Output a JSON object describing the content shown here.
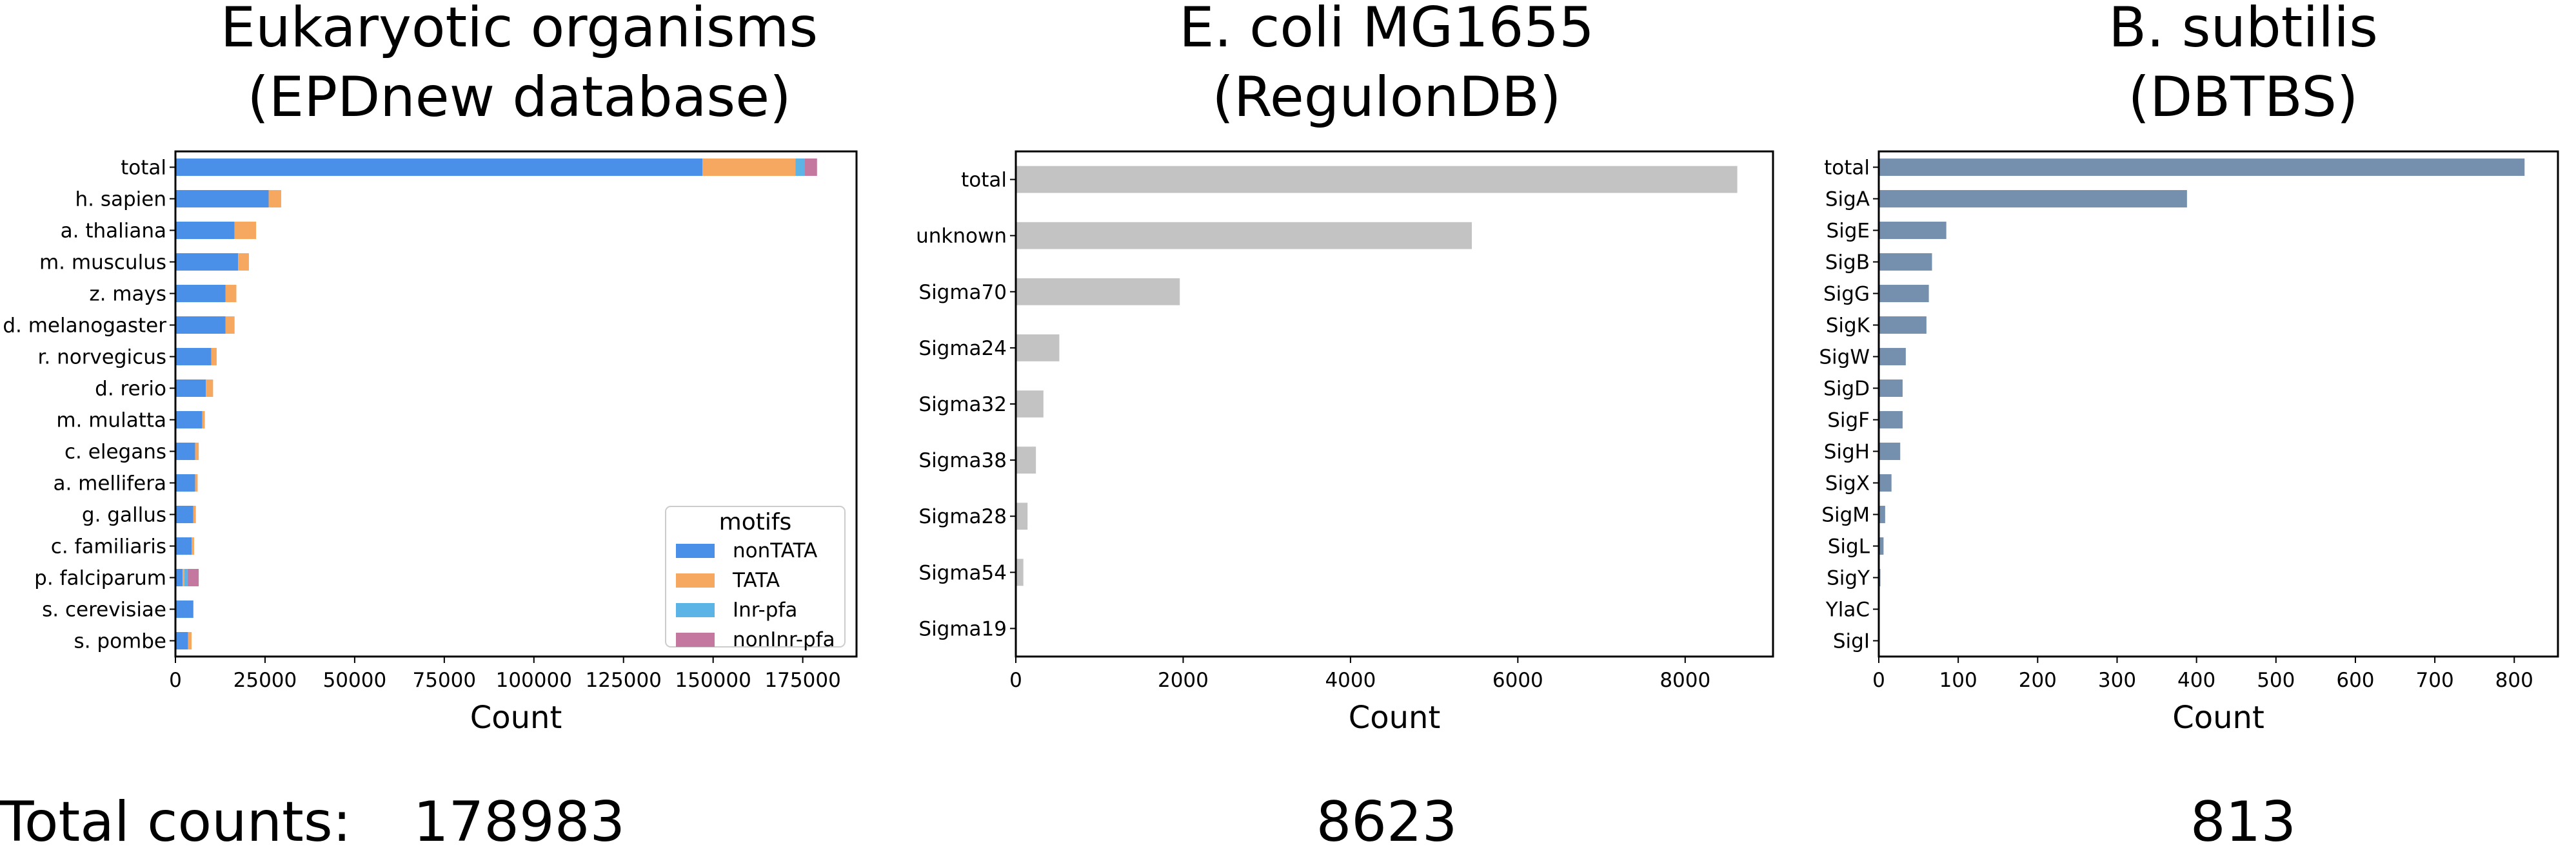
{
  "summary": {
    "label": "Total counts:",
    "totals": [
      "178983",
      "8623",
      "813"
    ]
  },
  "chart_data": [
    {
      "type": "bar",
      "orientation": "horizontal",
      "stacked": true,
      "title": [
        "Eukaryotic organisms",
        "(EPDnew database)"
      ],
      "xlabel": "Count",
      "ylabel": "",
      "xlim": [
        0,
        190000
      ],
      "xticks": [
        "0",
        "25000",
        "50000",
        "75000",
        "100000",
        "125000",
        "150000",
        "175000"
      ],
      "categories": [
        "total",
        "h. sapien",
        "a. thaliana",
        "m. musculus",
        "z. mays",
        "d. melanogaster",
        "r. norvegicus",
        "d. rerio",
        "m. mulatta",
        "c. elegans",
        "a. mellifera",
        "g. gallus",
        "c. familiaris",
        "p. falciparum",
        "s. cerevisiae",
        "s. pombe"
      ],
      "series": [
        {
          "name": "nonTATA",
          "color": "#4a90e8",
          "values": [
            147000,
            26000,
            16500,
            17500,
            14000,
            14000,
            10000,
            8500,
            7500,
            5500,
            5500,
            5000,
            4500,
            2000,
            5000,
            3500
          ]
        },
        {
          "name": "TATA",
          "color": "#f7a860",
          "values": [
            26000,
            3500,
            6000,
            3000,
            3000,
            2500,
            1500,
            2000,
            700,
            1000,
            700,
            700,
            700,
            500,
            0,
            1000
          ]
        },
        {
          "name": "Inr-pfa",
          "color": "#5bb3e6",
          "values": [
            2500,
            0,
            0,
            0,
            0,
            0,
            0,
            0,
            0,
            0,
            0,
            0,
            0,
            900,
            0,
            0
          ]
        },
        {
          "name": "nonInr-pfa",
          "color": "#c4779f",
          "values": [
            3483,
            0,
            0,
            0,
            0,
            0,
            0,
            0,
            0,
            0,
            0,
            0,
            0,
            3100,
            0,
            0
          ]
        }
      ],
      "legend": {
        "title": "motifs",
        "position": "lower-right"
      }
    },
    {
      "type": "bar",
      "orientation": "horizontal",
      "title": [
        "E. coli MG1655",
        "(RegulonDB)"
      ],
      "xlabel": "Count",
      "ylabel": "",
      "xlim": [
        0,
        9050
      ],
      "xticks": [
        "0",
        "2000",
        "4000",
        "6000",
        "8000"
      ],
      "color": "#c3c3c3",
      "categories": [
        "total",
        "unknown",
        "Sigma70",
        "Sigma24",
        "Sigma32",
        "Sigma38",
        "Sigma28",
        "Sigma54",
        "Sigma19"
      ],
      "values": [
        8623,
        5450,
        1960,
        520,
        330,
        240,
        140,
        90,
        10
      ]
    },
    {
      "type": "bar",
      "orientation": "horizontal",
      "title": [
        "B. subtilis",
        "(DBTBS)"
      ],
      "xlabel": "Count",
      "ylabel": "",
      "xlim": [
        0,
        855
      ],
      "xticks": [
        "0",
        "100",
        "200",
        "300",
        "400",
        "500",
        "600",
        "700",
        "800"
      ],
      "color": "#7590ae",
      "categories": [
        "total",
        "SigA",
        "SigE",
        "SigB",
        "SigG",
        "SigK",
        "SigW",
        "SigD",
        "SigF",
        "SigH",
        "SigX",
        "SigM",
        "SigL",
        "SigY",
        "YlaC",
        "SigI"
      ],
      "values": [
        813,
        388,
        85,
        67,
        63,
        60,
        34,
        30,
        30,
        27,
        16,
        8,
        6,
        2,
        1,
        1
      ]
    }
  ]
}
